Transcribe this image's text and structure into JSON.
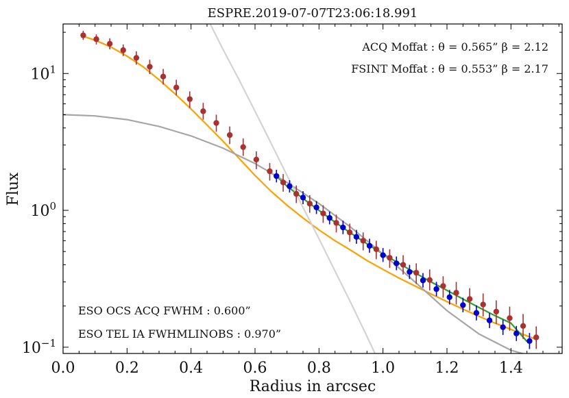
{
  "chart_data": {
    "type": "scatter",
    "title": "ESPRE.2019-07-07T23:06:18.991",
    "xlabel": "Radius in arcsec",
    "ylabel": "Flux",
    "xlim": [
      0.0,
      1.56
    ],
    "ylim": [
      0.09,
      23
    ],
    "yscale": "log",
    "xticks": [
      {
        "value": 0.0,
        "label": "0.0"
      },
      {
        "value": 0.2,
        "label": "0.2"
      },
      {
        "value": 0.4,
        "label": "0.4"
      },
      {
        "value": 0.6,
        "label": "0.6"
      },
      {
        "value": 0.8,
        "label": "0.8"
      },
      {
        "value": 1.0,
        "label": "1.0"
      },
      {
        "value": 1.2,
        "label": "1.2"
      },
      {
        "value": 1.4,
        "label": "1.4"
      }
    ],
    "yticks": [
      {
        "value": 0.1,
        "base": "10",
        "exp": "−1"
      },
      {
        "value": 1,
        "base": "10",
        "exp": "0"
      },
      {
        "value": 10,
        "base": "10",
        "exp": "1"
      }
    ],
    "annotations": {
      "acq_moffat": "ACQ Moffat :  θ = 0.565”  β = 2.12",
      "fsint_moffat": "FSINT Moffat :  θ = 0.553”  β = 2.17",
      "acq_fwhm": "ESO OCS ACQ FWHM :  0.600”",
      "tel_fwhm": "ESO TEL IA FWHMLINOBS : 0.970”"
    },
    "curves": [
      {
        "name": "acq-moffat-fit",
        "color": "#ff9f00",
        "x": [
          0.06,
          0.1,
          0.15,
          0.2,
          0.25,
          0.3,
          0.35,
          0.4,
          0.45,
          0.5,
          0.55,
          0.6,
          0.65,
          0.7,
          0.75,
          0.8,
          0.85,
          0.9,
          0.95,
          1.0,
          1.05,
          1.1,
          1.15,
          1.2,
          1.25,
          1.3,
          1.35,
          1.4,
          1.45,
          1.475
        ],
        "y": [
          18.8,
          17.5,
          15.6,
          13.4,
          11.2,
          9.0,
          7.1,
          5.5,
          4.2,
          3.2,
          2.4,
          1.8,
          1.38,
          1.09,
          0.88,
          0.72,
          0.6,
          0.51,
          0.43,
          0.37,
          0.32,
          0.28,
          0.245,
          0.215,
          0.19,
          0.168,
          0.15,
          0.135,
          0.121,
          0.115
        ]
      },
      {
        "name": "fsint-moffat-fit",
        "color": "#2ca02c",
        "x": [
          0.67,
          0.7,
          0.75,
          0.8,
          0.85,
          0.9,
          0.95,
          1.0,
          1.05,
          1.1,
          1.15,
          1.2,
          1.25,
          1.3,
          1.35,
          1.4,
          1.45
        ],
        "y": [
          1.75,
          1.5,
          1.22,
          1.0,
          0.82,
          0.68,
          0.57,
          0.48,
          0.41,
          0.35,
          0.3,
          0.26,
          0.225,
          0.195,
          0.17,
          0.15,
          0.11
        ]
      },
      {
        "name": "gaussian-acq-fwhm",
        "color": "#a6a6a6",
        "x": [
          0.0,
          0.1,
          0.2,
          0.3,
          0.4,
          0.5,
          0.6,
          0.7,
          0.8,
          0.9,
          1.0,
          1.1,
          1.2,
          1.3,
          1.4,
          1.45
        ],
        "y": [
          5.0,
          4.9,
          4.6,
          4.1,
          3.5,
          2.85,
          2.2,
          1.6,
          1.12,
          0.75,
          0.48,
          0.3,
          0.185,
          0.125,
          0.095,
          0.088
        ]
      },
      {
        "name": "gaussian-tel-fwhm",
        "color": "#d3d3d3",
        "x": [
          0.46,
          0.5,
          0.55,
          0.6,
          0.65,
          0.7,
          0.75,
          0.8,
          0.85,
          0.9,
          0.95,
          0.975
        ],
        "y": [
          23.0,
          15.0,
          9.0,
          5.3,
          3.1,
          1.8,
          1.05,
          0.62,
          0.36,
          0.21,
          0.12,
          0.09
        ]
      }
    ],
    "series": [
      {
        "name": "ACQ data",
        "color": "#a83232",
        "error_color": "#a83232",
        "points": [
          {
            "x": 0.063,
            "y": 19.0,
            "lo": 17.6,
            "hi": 20.5
          },
          {
            "x": 0.104,
            "y": 17.8,
            "lo": 16.3,
            "hi": 19.3
          },
          {
            "x": 0.146,
            "y": 16.5,
            "lo": 15.0,
            "hi": 18.1
          },
          {
            "x": 0.188,
            "y": 14.8,
            "lo": 13.4,
            "hi": 16.3
          },
          {
            "x": 0.229,
            "y": 13.0,
            "lo": 11.6,
            "hi": 14.5
          },
          {
            "x": 0.271,
            "y": 11.2,
            "lo": 9.9,
            "hi": 12.6
          },
          {
            "x": 0.313,
            "y": 9.5,
            "lo": 8.3,
            "hi": 10.8
          },
          {
            "x": 0.354,
            "y": 7.9,
            "lo": 6.9,
            "hi": 9.0
          },
          {
            "x": 0.396,
            "y": 6.5,
            "lo": 5.6,
            "hi": 7.4
          },
          {
            "x": 0.438,
            "y": 5.3,
            "lo": 4.6,
            "hi": 6.1
          },
          {
            "x": 0.479,
            "y": 4.35,
            "lo": 3.75,
            "hi": 5.0
          },
          {
            "x": 0.521,
            "y": 3.55,
            "lo": 3.05,
            "hi": 4.1
          },
          {
            "x": 0.563,
            "y": 2.9,
            "lo": 2.5,
            "hi": 3.35
          },
          {
            "x": 0.604,
            "y": 2.35,
            "lo": 2.0,
            "hi": 2.7
          },
          {
            "x": 0.646,
            "y": 1.93,
            "lo": 1.65,
            "hi": 2.22
          },
          {
            "x": 0.688,
            "y": 1.6,
            "lo": 1.37,
            "hi": 1.84
          },
          {
            "x": 0.729,
            "y": 1.32,
            "lo": 1.13,
            "hi": 1.52
          },
          {
            "x": 0.771,
            "y": 1.12,
            "lo": 0.96,
            "hi": 1.29
          },
          {
            "x": 0.813,
            "y": 0.95,
            "lo": 0.81,
            "hi": 1.09
          },
          {
            "x": 0.854,
            "y": 0.81,
            "lo": 0.69,
            "hi": 0.93
          },
          {
            "x": 0.896,
            "y": 0.69,
            "lo": 0.59,
            "hi": 0.8
          },
          {
            "x": 0.938,
            "y": 0.6,
            "lo": 0.51,
            "hi": 0.69
          },
          {
            "x": 0.979,
            "y": 0.52,
            "lo": 0.44,
            "hi": 0.6
          },
          {
            "x": 1.021,
            "y": 0.45,
            "lo": 0.38,
            "hi": 0.52
          },
          {
            "x": 1.063,
            "y": 0.4,
            "lo": 0.34,
            "hi": 0.47
          },
          {
            "x": 1.104,
            "y": 0.35,
            "lo": 0.29,
            "hi": 0.41
          },
          {
            "x": 1.146,
            "y": 0.31,
            "lo": 0.26,
            "hi": 0.37
          },
          {
            "x": 1.188,
            "y": 0.28,
            "lo": 0.23,
            "hi": 0.33
          },
          {
            "x": 1.229,
            "y": 0.25,
            "lo": 0.205,
            "hi": 0.3
          },
          {
            "x": 1.271,
            "y": 0.225,
            "lo": 0.185,
            "hi": 0.27
          },
          {
            "x": 1.313,
            "y": 0.205,
            "lo": 0.168,
            "hi": 0.247
          },
          {
            "x": 1.354,
            "y": 0.182,
            "lo": 0.148,
            "hi": 0.22
          },
          {
            "x": 1.396,
            "y": 0.163,
            "lo": 0.132,
            "hi": 0.198
          },
          {
            "x": 1.438,
            "y": 0.143,
            "lo": 0.115,
            "hi": 0.175
          },
          {
            "x": 1.479,
            "y": 0.118,
            "lo": 0.097,
            "hi": 0.142
          }
        ]
      },
      {
        "name": "FSINT data",
        "color": "#0000cc",
        "error_color": "#0000cc",
        "points": [
          {
            "x": 0.667,
            "y": 1.78,
            "lo": 1.6,
            "hi": 1.98
          },
          {
            "x": 0.708,
            "y": 1.5,
            "lo": 1.35,
            "hi": 1.66
          },
          {
            "x": 0.75,
            "y": 1.24,
            "lo": 1.11,
            "hi": 1.38
          },
          {
            "x": 0.792,
            "y": 1.05,
            "lo": 0.94,
            "hi": 1.17
          },
          {
            "x": 0.833,
            "y": 0.88,
            "lo": 0.79,
            "hi": 0.98
          },
          {
            "x": 0.875,
            "y": 0.75,
            "lo": 0.67,
            "hi": 0.84
          },
          {
            "x": 0.917,
            "y": 0.64,
            "lo": 0.57,
            "hi": 0.72
          },
          {
            "x": 0.958,
            "y": 0.55,
            "lo": 0.49,
            "hi": 0.62
          },
          {
            "x": 1.0,
            "y": 0.47,
            "lo": 0.42,
            "hi": 0.53
          },
          {
            "x": 1.042,
            "y": 0.41,
            "lo": 0.365,
            "hi": 0.46
          },
          {
            "x": 1.083,
            "y": 0.355,
            "lo": 0.315,
            "hi": 0.4
          },
          {
            "x": 1.125,
            "y": 0.308,
            "lo": 0.273,
            "hi": 0.348
          },
          {
            "x": 1.167,
            "y": 0.266,
            "lo": 0.236,
            "hi": 0.3
          },
          {
            "x": 1.208,
            "y": 0.232,
            "lo": 0.205,
            "hi": 0.262
          },
          {
            "x": 1.25,
            "y": 0.203,
            "lo": 0.18,
            "hi": 0.23
          },
          {
            "x": 1.292,
            "y": 0.178,
            "lo": 0.157,
            "hi": 0.202
          },
          {
            "x": 1.333,
            "y": 0.157,
            "lo": 0.138,
            "hi": 0.178
          },
          {
            "x": 1.375,
            "y": 0.14,
            "lo": 0.123,
            "hi": 0.159
          },
          {
            "x": 1.417,
            "y": 0.126,
            "lo": 0.111,
            "hi": 0.143
          },
          {
            "x": 1.458,
            "y": 0.111,
            "lo": 0.097,
            "hi": 0.127
          }
        ]
      }
    ]
  }
}
